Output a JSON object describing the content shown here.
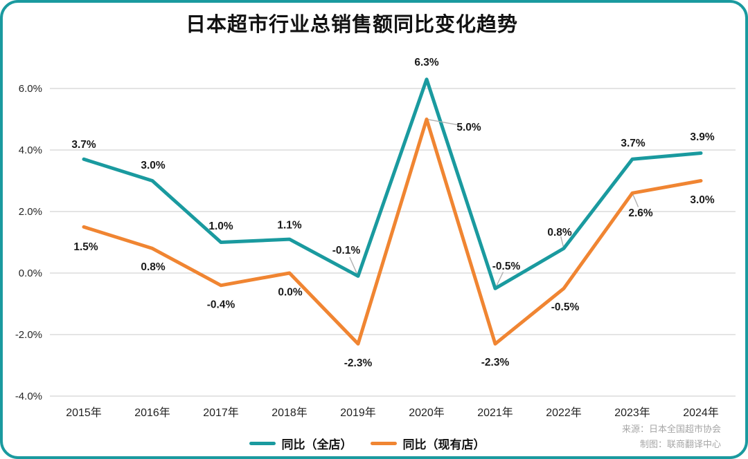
{
  "title": "日本超市行业总销售额同比变化趋势",
  "source": {
    "line1": "来源：日本全国超市协会",
    "line2": "制图：联商翻译中心"
  },
  "colors": {
    "card_border": "#1A9A9F",
    "grid": "#DCDCDC",
    "leader_line": "#AFAFAF",
    "text_dark": "#111111",
    "text_muted": "#A6A6A6"
  },
  "chart_data": {
    "type": "line",
    "title": "日本超市行业总销售额同比变化趋势",
    "categories": [
      "2015年",
      "2016年",
      "2017年",
      "2018年",
      "2019年",
      "2020年",
      "2021年",
      "2022年",
      "2023年",
      "2024年"
    ],
    "yticks": [
      {
        "label": "6.0%",
        "value": 6
      },
      {
        "label": "4.0%",
        "value": 4
      },
      {
        "label": "2.0%",
        "value": 2
      },
      {
        "label": "0.0%",
        "value": 0
      },
      {
        "label": "-2.0%",
        "value": -2
      },
      {
        "label": "-4.0%",
        "value": -4
      }
    ],
    "ylim": [
      -4,
      6.5
    ],
    "grid": true,
    "legend_position": "bottom-center",
    "series": [
      {
        "name": "同比（全店）",
        "color": "#1A9A9F",
        "values": [
          3.7,
          3.0,
          1.0,
          1.1,
          -0.1,
          6.3,
          -0.5,
          0.8,
          3.7,
          3.9
        ],
        "labels": [
          "3.7%",
          "3.0%",
          "1.0%",
          "1.1%",
          "-0.1%",
          "6.3%",
          "-0.5%",
          "0.8%",
          "3.7%",
          "3.9%"
        ],
        "label_offsets": [
          [
            0,
            -22
          ],
          [
            1,
            -23
          ],
          [
            0,
            -24
          ],
          [
            0,
            -21
          ],
          [
            -17,
            -38
          ],
          [
            0,
            -25
          ],
          [
            16,
            -33
          ],
          [
            -6,
            -24
          ],
          [
            1,
            -24
          ],
          [
            2,
            -24
          ]
        ],
        "leaders": [
          4,
          6,
          7
        ]
      },
      {
        "name": "同比（现有店）",
        "color": "#F08532",
        "values": [
          1.5,
          0.8,
          -0.4,
          0.0,
          -2.3,
          5.0,
          -2.3,
          -0.5,
          2.6,
          3.0
        ],
        "labels": [
          "1.5%",
          "0.8%",
          "-0.4%",
          "0.0%",
          "-2.3%",
          "5.0%",
          "-2.3%",
          "-0.5%",
          "2.6%",
          "3.0%"
        ],
        "label_offsets": [
          [
            3,
            28
          ],
          [
            1,
            26
          ],
          [
            0,
            27
          ],
          [
            1,
            27
          ],
          [
            0,
            27
          ],
          [
            61,
            11
          ],
          [
            0,
            26
          ],
          [
            2,
            26
          ],
          [
            12,
            28
          ],
          [
            2,
            27
          ]
        ],
        "leaders": [
          5,
          8
        ]
      }
    ]
  }
}
